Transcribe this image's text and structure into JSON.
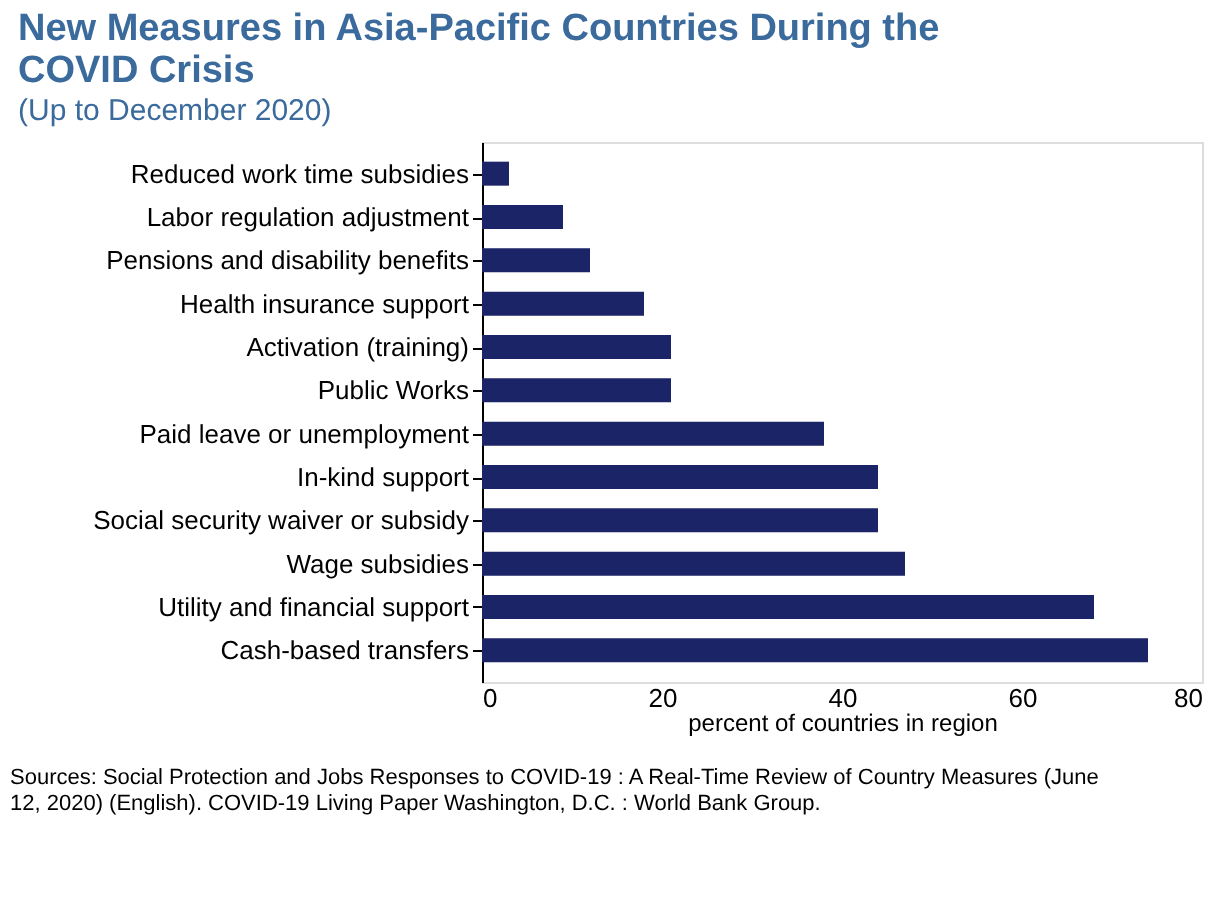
{
  "chart_data": {
    "type": "bar",
    "orientation": "horizontal",
    "title": "New Measures in Asia-Pacific Countries During the COVID Crisis",
    "subtitle": "(Up to December 2020)",
    "xlabel": "percent of countries in region",
    "categories": [
      "Reduced work time subsidies",
      "Labor regulation adjustment",
      "Pensions and disability benefits",
      "Health insurance support",
      "Activation (training)",
      "Public Works",
      "Paid leave or unemployment",
      "In-kind support",
      "Social security waiver or subsidy",
      "Wage subsidies",
      "Utility and financial support",
      "Cash-based transfers"
    ],
    "values": [
      3,
      9,
      12,
      18,
      21,
      21,
      38,
      44,
      44,
      47,
      68,
      74
    ],
    "color": "#1b2466",
    "xlim": [
      0,
      80
    ],
    "xticks": [
      0,
      20,
      40,
      60,
      80
    ],
    "grid": false,
    "annotations": [
      "Sources: Social Protection and Jobs Responses to COVID-19 : A Real-Time Review of Country Measures (June 12, 2020) (English). COVID-19 Living Paper Washington, D.C. : World Bank Group."
    ]
  }
}
